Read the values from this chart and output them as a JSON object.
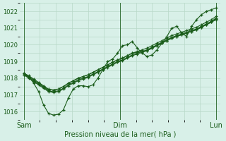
{
  "bg_color": "#d8f0e8",
  "grid_color": "#b8d8c8",
  "line_color": "#1a5c1a",
  "xlabel": "Pression niveau de la mer( hPa )",
  "ylim": [
    1015.5,
    1022.5
  ],
  "yticks": [
    1016,
    1017,
    1018,
    1019,
    1020,
    1021,
    1022
  ],
  "xtick_labels": [
    "Sam",
    "Dim",
    "Lun"
  ],
  "xtick_positions": [
    0,
    48,
    96
  ],
  "series": [
    [
      1018.3,
      1018.1,
      1017.7,
      1017.2,
      1016.4,
      1015.9,
      1015.8,
      1015.85,
      1016.1,
      1016.8,
      1017.35,
      1017.55,
      1017.55,
      1017.5,
      1017.6,
      1018.0,
      1018.5,
      1019.0,
      1019.15,
      1019.5,
      1019.95,
      1020.0,
      1020.2,
      1019.8,
      1019.5,
      1019.3,
      1019.4,
      1019.7,
      1020.1,
      1020.5,
      1021.0,
      1021.1,
      1020.7,
      1020.5,
      1021.1,
      1021.5,
      1021.8,
      1022.0,
      1022.1,
      1022.2
    ],
    [
      1018.2,
      1018.1,
      1017.9,
      1017.7,
      1017.5,
      1017.3,
      1017.3,
      1017.35,
      1017.5,
      1017.7,
      1017.85,
      1018.0,
      1018.1,
      1018.2,
      1018.35,
      1018.5,
      1018.65,
      1018.8,
      1018.95,
      1019.1,
      1019.2,
      1019.35,
      1019.5,
      1019.6,
      1019.7,
      1019.8,
      1019.95,
      1020.1,
      1020.25,
      1020.4,
      1020.55,
      1020.65,
      1020.75,
      1020.85,
      1020.95,
      1021.05,
      1021.2,
      1021.35,
      1021.5,
      1021.7
    ],
    [
      1018.2,
      1018.05,
      1017.85,
      1017.65,
      1017.45,
      1017.25,
      1017.2,
      1017.25,
      1017.4,
      1017.6,
      1017.75,
      1017.9,
      1018.0,
      1018.1,
      1018.25,
      1018.4,
      1018.55,
      1018.7,
      1018.85,
      1019.0,
      1019.1,
      1019.25,
      1019.4,
      1019.5,
      1019.6,
      1019.7,
      1019.85,
      1020.0,
      1020.15,
      1020.3,
      1020.45,
      1020.55,
      1020.65,
      1020.75,
      1020.85,
      1020.95,
      1021.1,
      1021.25,
      1021.4,
      1021.6
    ],
    [
      1018.3,
      1018.15,
      1017.95,
      1017.75,
      1017.55,
      1017.35,
      1017.3,
      1017.35,
      1017.5,
      1017.7,
      1017.85,
      1018.0,
      1018.1,
      1018.2,
      1018.35,
      1018.5,
      1018.65,
      1018.8,
      1018.95,
      1019.1,
      1019.2,
      1019.35,
      1019.5,
      1019.55,
      1019.6,
      1019.65,
      1019.8,
      1019.95,
      1020.1,
      1020.25,
      1020.4,
      1020.5,
      1020.6,
      1020.7,
      1020.8,
      1020.9,
      1021.05,
      1021.2,
      1021.35,
      1021.55
    ],
    [
      1018.2,
      1018.0,
      1017.8,
      1017.6,
      1017.4,
      1017.2,
      1017.15,
      1017.2,
      1017.35,
      1017.55,
      1017.7,
      1017.85,
      1017.95,
      1018.05,
      1018.2,
      1018.35,
      1018.5,
      1018.65,
      1018.8,
      1018.95,
      1019.05,
      1019.2,
      1019.35,
      1019.45,
      1019.55,
      1019.65,
      1019.8,
      1019.95,
      1020.1,
      1020.25,
      1020.4,
      1020.5,
      1020.6,
      1020.7,
      1020.8,
      1020.9,
      1021.05,
      1021.2,
      1021.35,
      1021.5
    ]
  ]
}
